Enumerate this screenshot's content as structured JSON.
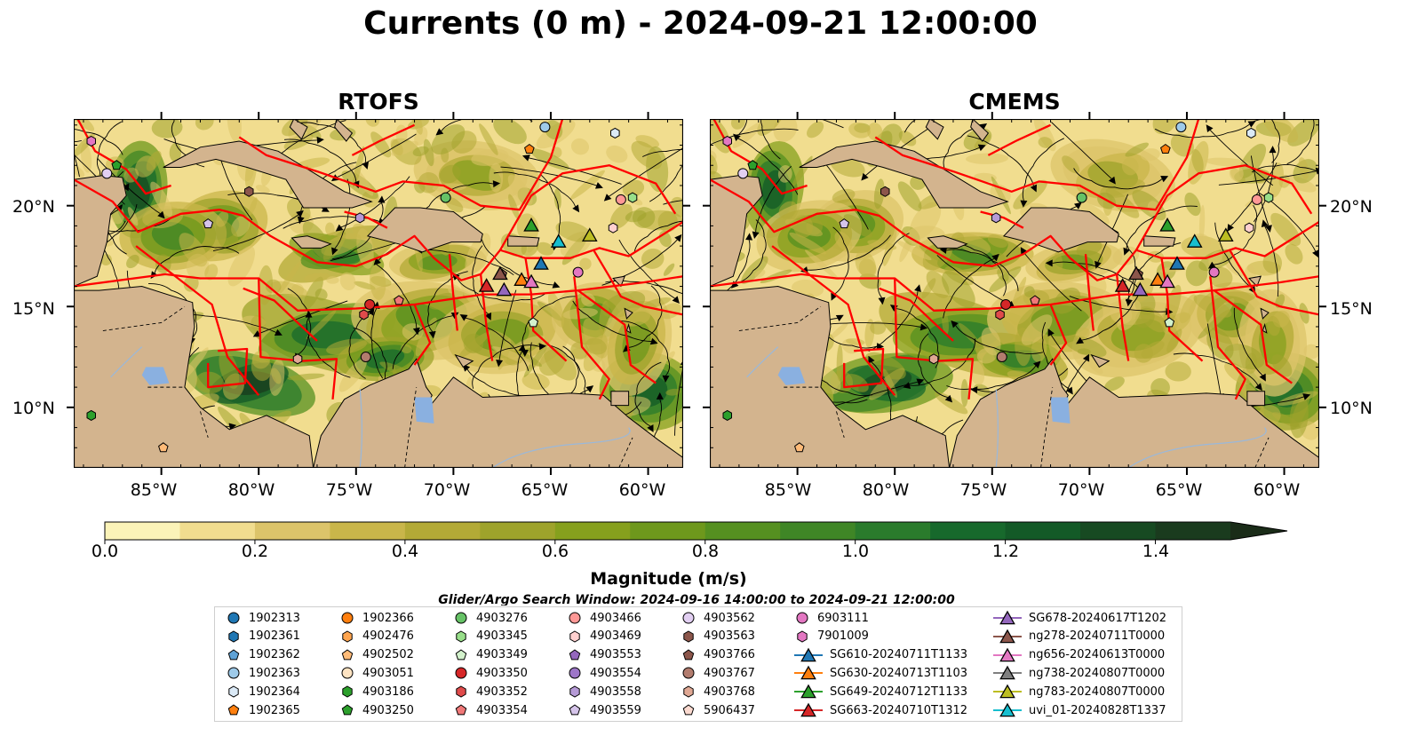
{
  "title": "Currents (0 m) - 2024-09-21 12:00:00",
  "panels": [
    {
      "id": "rtofs",
      "title": "RTOFS"
    },
    {
      "id": "cmems",
      "title": "CMEMS"
    }
  ],
  "colors": {
    "land": "#d3b48e",
    "lake": "#8ab0e0",
    "river": "#9ab8da",
    "eez_line": "#ff0000",
    "streamline": "#000000",
    "colormap": [
      "#fbf3b8",
      "#f1dd8f",
      "#dcc46a",
      "#c9b64a",
      "#b3aa36",
      "#9ea32b",
      "#86a01d",
      "#6e981c",
      "#559020",
      "#3f8626",
      "#2a7b2c",
      "#17692c",
      "#135a27",
      "#174a22",
      "#1a3b1e",
      "#1a2c18"
    ]
  },
  "axes": {
    "lon_ticks": [
      "85°W",
      "80°W",
      "75°W",
      "70°W",
      "65°W",
      "60°W"
    ],
    "lat_ticks": [
      "20°N",
      "15°N",
      "10°N"
    ],
    "lon_range": [
      -89.5,
      -58.2
    ],
    "lat_range": [
      7.0,
      24.3
    ]
  },
  "colorbar": {
    "label": "Magnitude (m/s)",
    "ticks": [
      "0.0",
      "0.2",
      "0.4",
      "0.6",
      "0.8",
      "1.0",
      "1.2",
      "1.4"
    ],
    "range": [
      0.0,
      1.5
    ],
    "extend": "max"
  },
  "search_window": "Glider/Argo Search Window: 2024-09-16 14:00:00 to 2024-09-21 12:00:00",
  "legend": [
    {
      "label": "1902313",
      "marker": "circle",
      "color": "#1f77b4"
    },
    {
      "label": "1902361",
      "marker": "hexagon",
      "color": "#1f77b4"
    },
    {
      "label": "1902362",
      "marker": "pentagon",
      "color": "#5fa2d6"
    },
    {
      "label": "1902363",
      "marker": "circle",
      "color": "#9ecae9"
    },
    {
      "label": "1902364",
      "marker": "hexagon",
      "color": "#dbeaf7"
    },
    {
      "label": "1902365",
      "marker": "pentagon",
      "color": "#ff7f0e"
    },
    {
      "label": "1902366",
      "marker": "circle",
      "color": "#ff7f0e"
    },
    {
      "label": "4902476",
      "marker": "hexagon",
      "color": "#ffa54f"
    },
    {
      "label": "4902502",
      "marker": "pentagon",
      "color": "#ffbb78"
    },
    {
      "label": "4903051",
      "marker": "circle",
      "color": "#fde3c2"
    },
    {
      "label": "4903186",
      "marker": "hexagon",
      "color": "#2ca02c"
    },
    {
      "label": "4903250",
      "marker": "pentagon",
      "color": "#2ca02c"
    },
    {
      "label": "4903276",
      "marker": "circle",
      "color": "#66c266"
    },
    {
      "label": "4903345",
      "marker": "hexagon",
      "color": "#98df8a"
    },
    {
      "label": "4903349",
      "marker": "pentagon",
      "color": "#d3f2cc"
    },
    {
      "label": "4903350",
      "marker": "circle",
      "color": "#d62728"
    },
    {
      "label": "4903352",
      "marker": "hexagon",
      "color": "#e04b4b"
    },
    {
      "label": "4903354",
      "marker": "pentagon",
      "color": "#f07878"
    },
    {
      "label": "4903466",
      "marker": "circle",
      "color": "#ff9896"
    },
    {
      "label": "4903469",
      "marker": "hexagon",
      "color": "#ffd0cf"
    },
    {
      "label": "4903553",
      "marker": "pentagon",
      "color": "#9467bd"
    },
    {
      "label": "4903554",
      "marker": "circle",
      "color": "#9d76c8"
    },
    {
      "label": "4903558",
      "marker": "hexagon",
      "color": "#b59ad6"
    },
    {
      "label": "4903559",
      "marker": "pentagon",
      "color": "#d5c4ea"
    },
    {
      "label": "4903562",
      "marker": "circle",
      "color": "#e2cff2"
    },
    {
      "label": "4903563",
      "marker": "hexagon",
      "color": "#8c564b"
    },
    {
      "label": "4903766",
      "marker": "pentagon",
      "color": "#8c564b"
    },
    {
      "label": "4903767",
      "marker": "circle",
      "color": "#b27c6e"
    },
    {
      "label": "4903768",
      "marker": "hexagon",
      "color": "#e0a894"
    },
    {
      "label": "5906437",
      "marker": "pentagon",
      "color": "#fbdad0"
    },
    {
      "label": "6903111",
      "marker": "circle",
      "color": "#e377c2"
    },
    {
      "label": "7901009",
      "marker": "hexagon",
      "color": "#e377c2"
    },
    {
      "label": "SG610-20240711T1133",
      "marker": "triangle-line",
      "color": "#1f77b4"
    },
    {
      "label": "SG630-20240713T1103",
      "marker": "triangle-line",
      "color": "#ff7f0e"
    },
    {
      "label": "SG649-20240712T1133",
      "marker": "triangle-line",
      "color": "#2ca02c"
    },
    {
      "label": "SG663-20240710T1312",
      "marker": "triangle-line",
      "color": "#d62728"
    },
    {
      "label": "SG678-20240617T1202",
      "marker": "triangle-line",
      "color": "#9467bd"
    },
    {
      "label": "ng278-20240711T0000",
      "marker": "triangle-line",
      "color": "#8c564b"
    },
    {
      "label": "ng656-20240613T0000",
      "marker": "triangle-line",
      "color": "#e377c2"
    },
    {
      "label": "ng738-20240807T0000",
      "marker": "triangle-line",
      "color": "#7f7f7f"
    },
    {
      "label": "ng783-20240807T0000",
      "marker": "triangle-line",
      "color": "#bcbd22"
    },
    {
      "label": "uvi_01-20240828T1337",
      "marker": "triangle-line",
      "color": "#17becf"
    }
  ],
  "chart_data": {
    "type": "map",
    "title": "Currents (0 m) - 2024-09-21 12:00:00",
    "variable": "Magnitude (m/s)",
    "value_range": [
      0.0,
      1.5
    ],
    "lon_range": [
      -89.5,
      -58.2
    ],
    "lat_range": [
      7.0,
      24.3
    ],
    "observations": [
      {
        "id": "4903350",
        "lon": -74.3,
        "lat": 15.1
      },
      {
        "id": "4903352",
        "lon": -74.6,
        "lat": 14.6
      },
      {
        "id": "4903354",
        "lon": -72.8,
        "lat": 15.3
      },
      {
        "id": "4903767",
        "lon": -74.5,
        "lat": 12.5
      },
      {
        "id": "4903766",
        "lon": -67.5,
        "lat": 16.6
      },
      {
        "id": "4903276",
        "lon": -70.4,
        "lat": 20.4
      },
      {
        "id": "4903345",
        "lon": -60.8,
        "lat": 20.4
      },
      {
        "id": "4903349",
        "lon": -65.9,
        "lat": 14.2
      },
      {
        "id": "4903563",
        "lon": -80.5,
        "lat": 20.7
      },
      {
        "id": "4903559",
        "lon": -82.6,
        "lat": 19.1
      },
      {
        "id": "4903558",
        "lon": -74.8,
        "lat": 19.4
      },
      {
        "id": "4903466",
        "lon": -61.4,
        "lat": 20.3
      },
      {
        "id": "4903469",
        "lon": -61.8,
        "lat": 18.9
      },
      {
        "id": "6903111",
        "lon": -63.6,
        "lat": 16.7
      },
      {
        "id": "7901009",
        "lon": -88.6,
        "lat": 23.2
      },
      {
        "id": "4903562",
        "lon": -87.8,
        "lat": 21.6
      },
      {
        "id": "1902363",
        "lon": -65.3,
        "lat": 23.9
      },
      {
        "id": "1902364",
        "lon": -61.7,
        "lat": 23.6
      },
      {
        "id": "1902365",
        "lon": -66.1,
        "lat": 22.8
      },
      {
        "id": "4903186",
        "lon": -88.6,
        "lat": 9.6
      },
      {
        "id": "4903250",
        "lon": -87.3,
        "lat": 22.0
      },
      {
        "id": "4903768",
        "lon": -78.0,
        "lat": 12.4
      },
      {
        "id": "4902502",
        "lon": -84.9,
        "lat": 8.0
      },
      {
        "id": "SG610-20240711T1133",
        "lon": -65.5,
        "lat": 17.1
      },
      {
        "id": "SG630-20240713T1103",
        "lon": -66.5,
        "lat": 16.3
      },
      {
        "id": "SG649-20240712T1133",
        "lon": -66.0,
        "lat": 19.0
      },
      {
        "id": "SG663-20240710T1312",
        "lon": -68.3,
        "lat": 16.0
      },
      {
        "id": "SG678-20240617T1202",
        "lon": -67.4,
        "lat": 15.8
      },
      {
        "id": "ng278-20240711T0000",
        "lon": -67.6,
        "lat": 16.6
      },
      {
        "id": "ng656-20240613T0000",
        "lon": -66.0,
        "lat": 16.2
      },
      {
        "id": "ng783-20240807T0000",
        "lon": -63.0,
        "lat": 18.5
      },
      {
        "id": "uvi_01-20240828T1337",
        "lon": -64.6,
        "lat": 18.2
      }
    ]
  }
}
